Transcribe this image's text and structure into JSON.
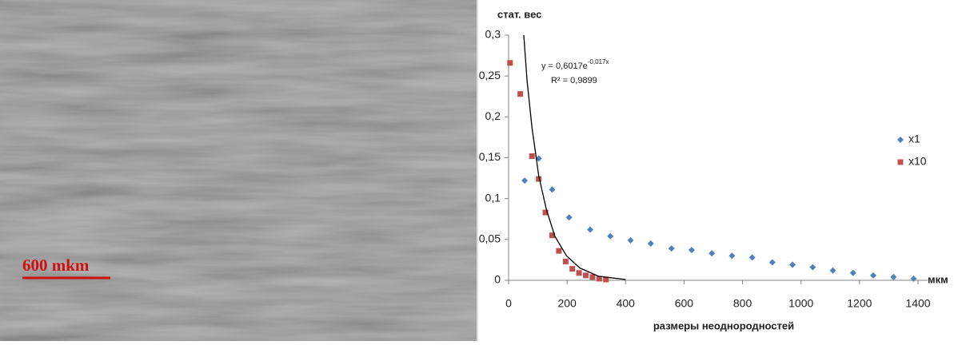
{
  "image": {
    "scale_label": "600 mkm"
  },
  "chart_data": {
    "type": "scatter",
    "y_label": "стат. вес",
    "x_label": "размеры неоднородностей",
    "x_unit_label": "мкм",
    "xlim": [
      0,
      1400
    ],
    "xticks": [
      0,
      200,
      400,
      600,
      800,
      1000,
      1200,
      1400
    ],
    "ylim": [
      0,
      0.3
    ],
    "yticks": [
      0,
      {
        "value": 0.05,
        "label": "0,05"
      },
      {
        "value": 0.1,
        "label": "0,1"
      },
      {
        "value": 0.15,
        "label": "0,15"
      },
      {
        "value": 0.2,
        "label": "0,2"
      },
      {
        "value": 0.25,
        "label": "0,25"
      },
      {
        "value": 0.3,
        "label": "0,3"
      }
    ],
    "grid": false,
    "legend": "right",
    "series": [
      {
        "name": "x1",
        "color": "#4f81bd",
        "marker": "diamond",
        "x": [
          55,
          103,
          149,
          207,
          279,
          348,
          417,
          486,
          557,
          626,
          695,
          764,
          833,
          902,
          971,
          1040,
          1109,
          1178,
          1247,
          1316,
          1385
        ],
        "values": [
          0.122,
          0.149,
          0.111,
          0.077,
          0.062,
          0.054,
          0.049,
          0.045,
          0.039,
          0.037,
          0.033,
          0.03,
          0.028,
          0.022,
          0.019,
          0.016,
          0.012,
          0.009,
          0.006,
          0.004,
          0.002
        ]
      },
      {
        "name": "x10",
        "color": "#c0504d",
        "marker": "square",
        "x": [
          5,
          40,
          80,
          103,
          126,
          149,
          172,
          195,
          218,
          241,
          264,
          287,
          310,
          333
        ],
        "values": [
          0.266,
          0.228,
          0.152,
          0.124,
          0.083,
          0.055,
          0.036,
          0.023,
          0.014,
          0.009,
          0.006,
          0.004,
          0.002,
          0.001
        ]
      }
    ],
    "trendline": {
      "color": "#000000",
      "x": [
        52,
        63,
        80,
        103,
        129,
        158,
        198,
        244,
        307,
        400
      ],
      "values": [
        0.3,
        0.245,
        0.187,
        0.128,
        0.087,
        0.054,
        0.03,
        0.015,
        0.005,
        0.001
      ],
      "equation": "y = 0,6017e",
      "equation_exponent": "-0,017x",
      "r2": "R² = 0,9899"
    }
  }
}
